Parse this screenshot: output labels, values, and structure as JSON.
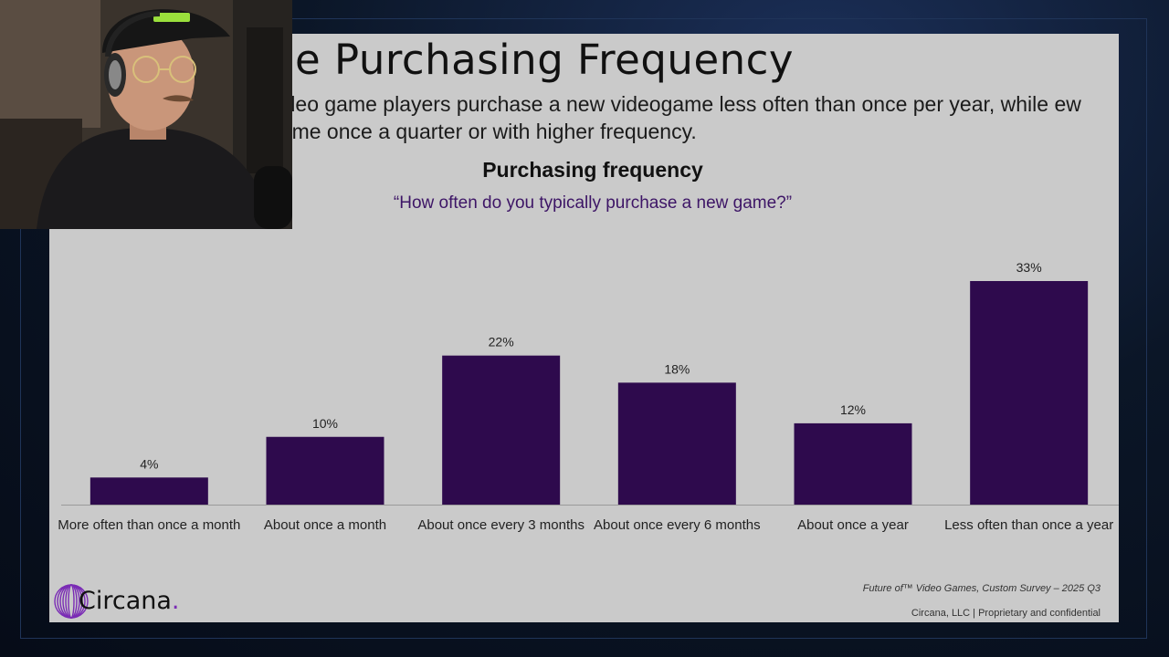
{
  "slide": {
    "title": "ne Purchasing Frequency",
    "subtitle": "video game players purchase a new videogame less often than once per year, while ew game once a quarter or with higher frequency.",
    "source_note": "Future of™ Video Games, Custom Survey – 2025 Q3",
    "footer": "Circana, LLC |  Proprietary and confidential",
    "logo_text": "Circana",
    "logo_dot": "."
  },
  "colors": {
    "bar": "#2e0a4d",
    "slide_background": "#cacaca",
    "question_text": "#3d1566",
    "logo_accent": "#7a2bb5"
  },
  "chart_data": {
    "type": "bar",
    "title": "Purchasing frequency",
    "subtitle": "“How often do you typically purchase a new game?”",
    "categories": [
      "More often than once a month",
      "About once a month",
      "About once every 3 months",
      "About once every 6 months",
      "About once a year",
      "Less often than once a year"
    ],
    "values": [
      4,
      10,
      22,
      18,
      12,
      33
    ],
    "value_labels": [
      "4%",
      "10%",
      "22%",
      "18%",
      "12%",
      "33%"
    ],
    "unit": "%",
    "ylim": [
      0,
      33
    ],
    "grid": false,
    "legend": "none"
  }
}
